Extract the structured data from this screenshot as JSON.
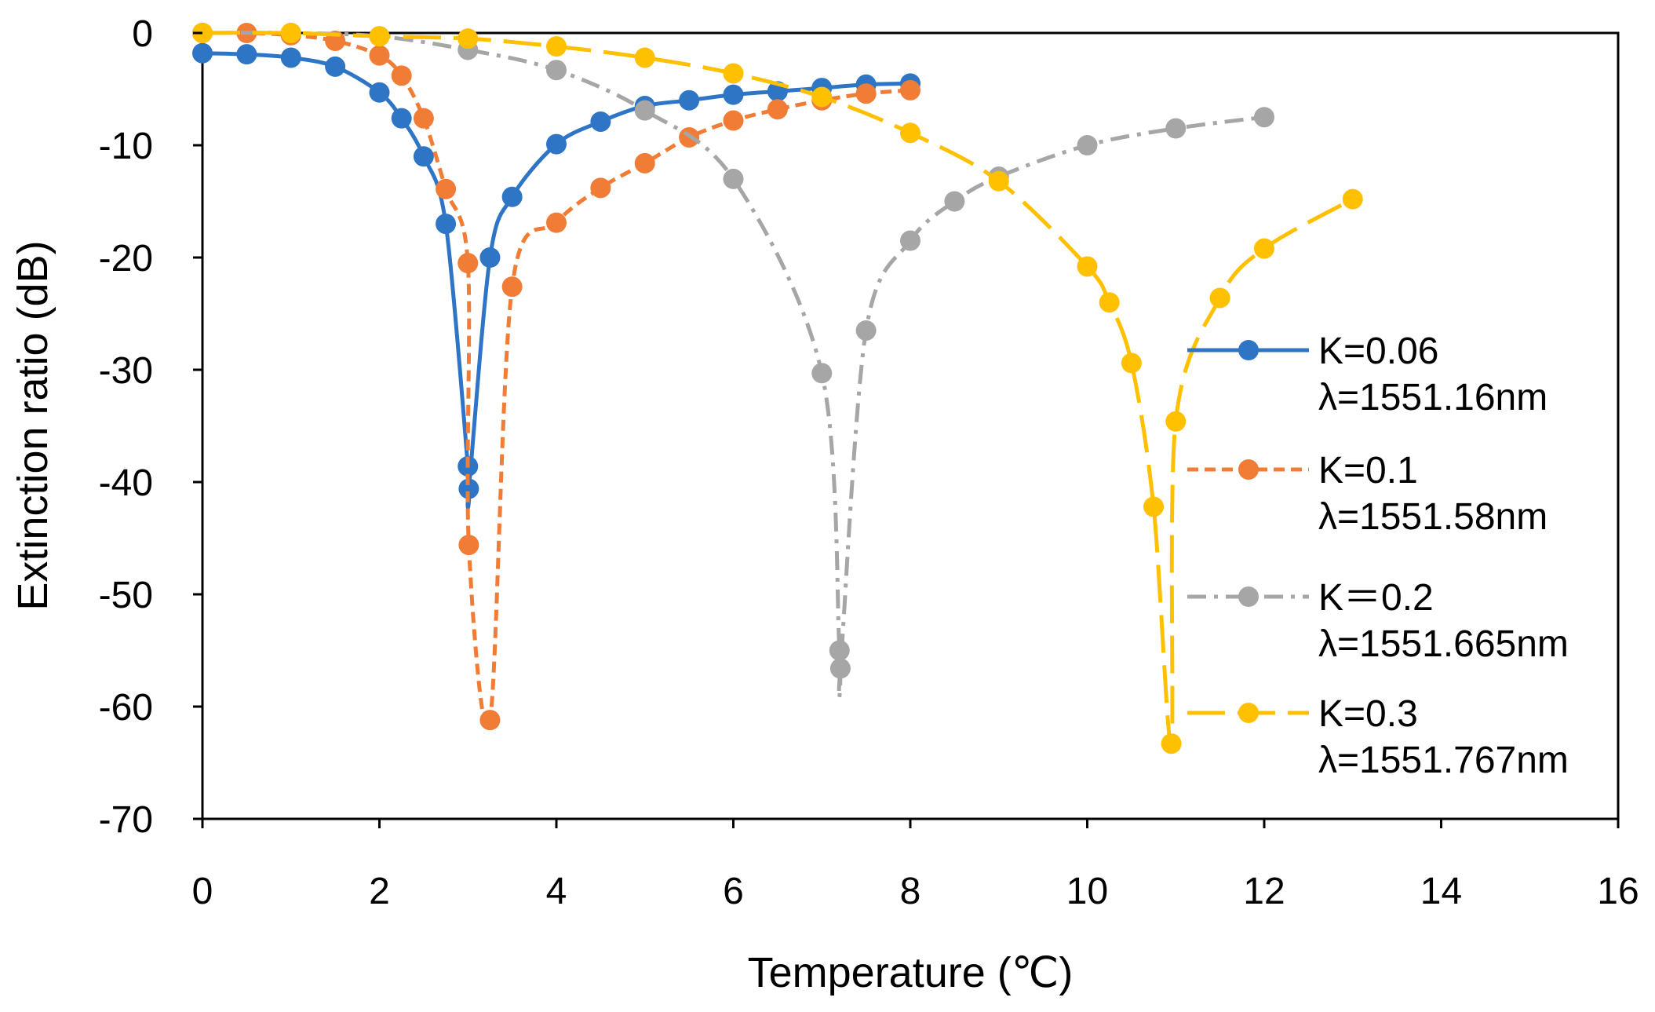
{
  "chart_data": {
    "type": "line",
    "title": "",
    "xlabel": "Temperature (℃)",
    "ylabel": "Extinction ratio (dB)",
    "xlim": [
      0,
      16
    ],
    "ylim": [
      -70,
      0
    ],
    "xticks": [
      "0",
      "2",
      "4",
      "6",
      "8",
      "10",
      "12",
      "14",
      "16"
    ],
    "yticks": [
      "0",
      "-10",
      "-20",
      "-30",
      "-40",
      "-50",
      "-60",
      "-70"
    ],
    "grid": false,
    "legend_position": "right",
    "series": [
      {
        "name": "K=0.06",
        "sublabel": "λ=1551.16nm",
        "color": "#2E75C5",
        "dash": "solid",
        "x": [
          0,
          0.5,
          1,
          1.5,
          2,
          2.25,
          2.5,
          2.75,
          3,
          3.01,
          3.25,
          3.5,
          4,
          4.5,
          5,
          5.5,
          6,
          6.5,
          7,
          7.5,
          8
        ],
        "y": [
          -1.8,
          -1.9,
          -2.2,
          -3.0,
          -5.3,
          -7.6,
          -11.0,
          -17.0,
          -38.6,
          -40.6,
          -20.0,
          -14.6,
          -9.9,
          -7.9,
          -6.5,
          -6.0,
          -5.5,
          -5.2,
          -4.9,
          -4.6,
          -4.5
        ]
      },
      {
        "name": "K=0.1",
        "sublabel": "λ=1551.58nm",
        "color": "#F07C35",
        "dash": "dash",
        "x": [
          0,
          0.5,
          1,
          1.5,
          2,
          2.25,
          2.5,
          2.75,
          3,
          3.01,
          3.25,
          3.5,
          4,
          4.5,
          5,
          5.5,
          6,
          6.5,
          7,
          7.5,
          8
        ],
        "y": [
          0,
          0,
          -0.2,
          -0.7,
          -2.0,
          -3.8,
          -7.6,
          -13.9,
          -20.5,
          -45.6,
          -61.2,
          -22.6,
          -16.9,
          -13.8,
          -11.6,
          -9.3,
          -7.8,
          -6.8,
          -6.0,
          -5.4,
          -5.1
        ]
      },
      {
        "name": "K＝0.2",
        "sublabel": "λ=1551.665nm",
        "color": "#A6A6A6",
        "dash": "dashdot",
        "x": [
          0,
          1,
          2,
          3,
          4,
          5,
          6,
          7,
          7.2,
          7.21,
          7.5,
          8,
          8.5,
          9,
          10,
          11,
          12
        ],
        "y": [
          0,
          0,
          -0.3,
          -1.5,
          -3.3,
          -6.9,
          -13.0,
          -30.3,
          -55.0,
          -56.6,
          -26.5,
          -18.5,
          -15.0,
          -12.8,
          -10.0,
          -8.5,
          -7.5
        ]
      },
      {
        "name": "K=0.3",
        "sublabel": "λ=1551.767nm",
        "color": "#FFC000",
        "dash": "longdash",
        "x": [
          0,
          1,
          2,
          3,
          4,
          5,
          6,
          7,
          8,
          9,
          10,
          10.25,
          10.5,
          10.75,
          10.95,
          11.0,
          11.5,
          12,
          13
        ],
        "y": [
          0,
          0,
          -0.3,
          -0.5,
          -1.2,
          -2.2,
          -3.6,
          -5.7,
          -8.9,
          -13.2,
          -20.8,
          -24.0,
          -29.4,
          -42.2,
          -63.3,
          -34.6,
          -23.6,
          -19.2,
          -14.8
        ]
      }
    ]
  }
}
